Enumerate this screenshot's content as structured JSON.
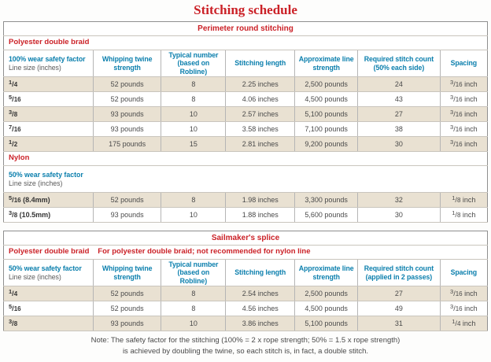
{
  "title": "Stitching schedule",
  "colors": {
    "red": "#cb2127",
    "blue": "#0b7fad",
    "beige": "#e9e1d2"
  },
  "t1": {
    "title": "Perimeter round stitching",
    "poly": {
      "material": "Polyester double braid",
      "factor": "100% wear safety factor",
      "line_size": "Line size (inches)",
      "cols": [
        "Whipping twine strength",
        "Typical number (based on Robline)",
        "Stitching length",
        "Approximate line strength",
        "Required stitch count (50% each side)",
        "Spacing"
      ],
      "rows": [
        [
          "1/4",
          "52 pounds",
          "8",
          "2.25 inches",
          "2,500 pounds",
          "24",
          "3/16 inch"
        ],
        [
          "5/16",
          "52 pounds",
          "8",
          "4.06 inches",
          "4,500 pounds",
          "43",
          "3/16 inch"
        ],
        [
          "3/8",
          "93 pounds",
          "10",
          "2.57 inches",
          "5,100 pounds",
          "27",
          "3/16 inch"
        ],
        [
          "7/16",
          "93 pounds",
          "10",
          "3.58 inches",
          "7,100 pounds",
          "38",
          "3/16 inch"
        ],
        [
          "1/2",
          "175 pounds",
          "15",
          "2.81 inches",
          "9,200 pounds",
          "30",
          "3/16 inch"
        ]
      ]
    },
    "nylon": {
      "material": "Nylon",
      "factor": "50% wear safety factor",
      "line_size": "Line size (inches)",
      "rows": [
        [
          "5/16 (8.4mm)",
          "52 pounds",
          "8",
          "1.98 inches",
          "3,300 pounds",
          "32",
          "1/8 inch"
        ],
        [
          "3/8 (10.5mm)",
          "93 pounds",
          "10",
          "1.88 inches",
          "5,600 pounds",
          "30",
          "1/8 inch"
        ]
      ]
    }
  },
  "t2": {
    "title": "Sailmaker's splice",
    "material": "Polyester double braid",
    "banner_note": "For polyester double braid; not recommended for nylon line",
    "factor": "50% wear safety factor",
    "line_size": "Line size (inches)",
    "cols": [
      "Whipping twine strength",
      "Typical number (based on Robline)",
      "Stitching length",
      "Approximate line strength",
      "Required stitch count (applied in 2 passes)",
      "Spacing"
    ],
    "rows": [
      [
        "1/4",
        "52 pounds",
        "8",
        "2.54 inches",
        "2,500 pounds",
        "27",
        "3/16 inch"
      ],
      [
        "5/16",
        "52 pounds",
        "8",
        "4.56 inches",
        "4,500 pounds",
        "49",
        "3/16 inch"
      ],
      [
        "3/8",
        "93 pounds",
        "10",
        "3.86 inches",
        "5,100 pounds",
        "31",
        "1/4 inch"
      ]
    ]
  },
  "note": [
    "Note: The safety factor for the stitching (100% = 2 x rope strength; 50% = 1.5 x rope strength)",
    "is achieved by doubling the twine, so each stitch is, in fact, a double stitch."
  ]
}
